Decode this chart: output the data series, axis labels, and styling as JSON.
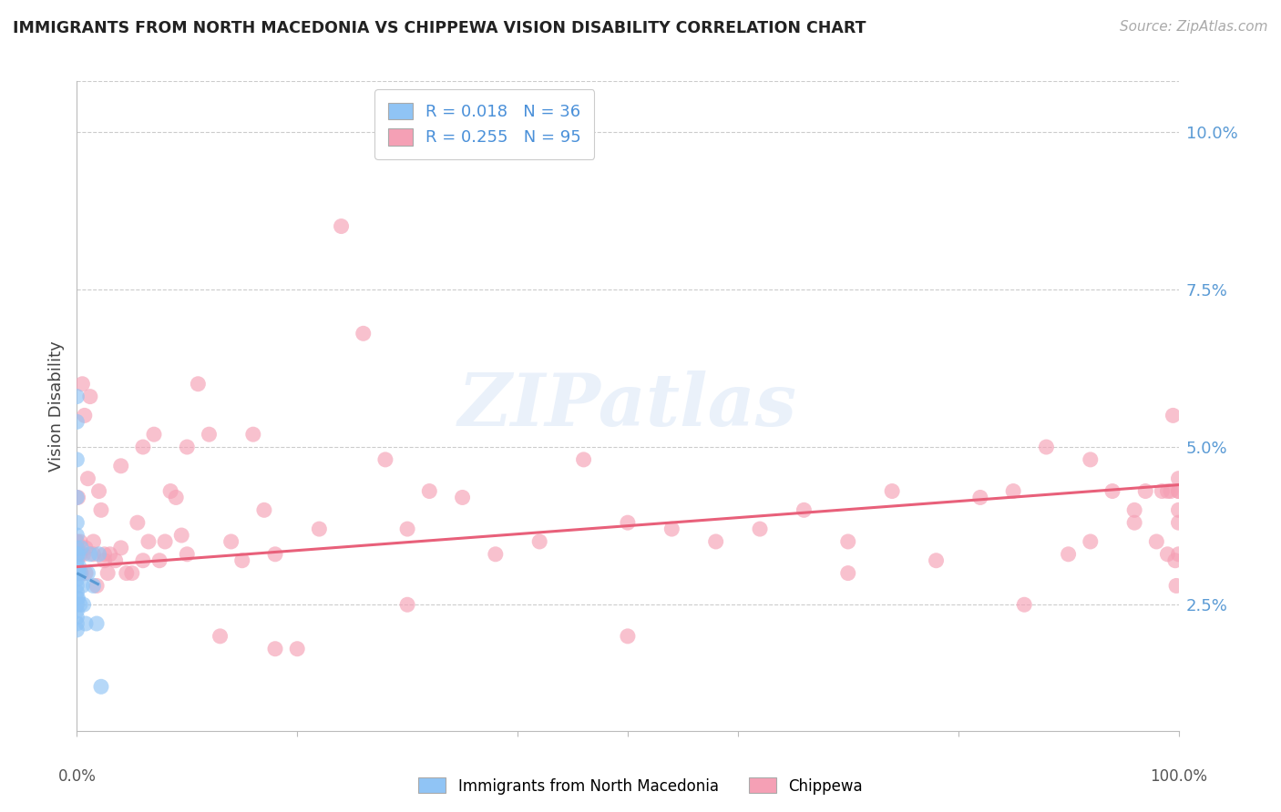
{
  "title": "IMMIGRANTS FROM NORTH MACEDONIA VS CHIPPEWA VISION DISABILITY CORRELATION CHART",
  "source": "Source: ZipAtlas.com",
  "ylabel": "Vision Disability",
  "xlim": [
    0,
    1.0
  ],
  "ylim": [
    0.005,
    0.108
  ],
  "yticks": [
    0.025,
    0.05,
    0.075,
    0.1
  ],
  "ytick_labels": [
    "2.5%",
    "5.0%",
    "7.5%",
    "10.0%"
  ],
  "blue_color": "#90c4f5",
  "pink_color": "#f5a0b5",
  "blue_line_color": "#5b9bd5",
  "pink_line_color": "#e8607a",
  "legend_blue_r": "0.018",
  "legend_blue_n": "36",
  "legend_pink_r": "0.255",
  "legend_pink_n": "95",
  "watermark_text": "ZIPatlas",
  "legend_label_color": "#4a90d9",
  "tick_label_color": "#5b9bd5",
  "blue_points_x": [
    0.0,
    0.0,
    0.0,
    0.0,
    0.0,
    0.0,
    0.0,
    0.0,
    0.0,
    0.0,
    0.0,
    0.0,
    0.0,
    0.0,
    0.0,
    0.0,
    0.0,
    0.0,
    0.0,
    0.0,
    0.001,
    0.001,
    0.001,
    0.002,
    0.003,
    0.003,
    0.004,
    0.005,
    0.006,
    0.008,
    0.01,
    0.012,
    0.015,
    0.018,
    0.02,
    0.022
  ],
  "blue_points_y": [
    0.058,
    0.054,
    0.048,
    0.042,
    0.038,
    0.036,
    0.034,
    0.033,
    0.032,
    0.031,
    0.03,
    0.029,
    0.028,
    0.027,
    0.026,
    0.025,
    0.024,
    0.023,
    0.022,
    0.021,
    0.033,
    0.03,
    0.026,
    0.031,
    0.03,
    0.025,
    0.034,
    0.028,
    0.025,
    0.022,
    0.03,
    0.033,
    0.028,
    0.022,
    0.033,
    0.012
  ],
  "blue_trend_x": [
    0.0,
    0.022
  ],
  "blue_trend_y": [
    0.03,
    0.028
  ],
  "pink_points_x": [
    0.0,
    0.001,
    0.002,
    0.003,
    0.004,
    0.005,
    0.006,
    0.007,
    0.008,
    0.01,
    0.012,
    0.015,
    0.018,
    0.02,
    0.022,
    0.025,
    0.028,
    0.03,
    0.035,
    0.04,
    0.045,
    0.05,
    0.055,
    0.06,
    0.065,
    0.07,
    0.075,
    0.08,
    0.085,
    0.09,
    0.095,
    0.1,
    0.11,
    0.12,
    0.13,
    0.14,
    0.15,
    0.16,
    0.17,
    0.18,
    0.2,
    0.22,
    0.24,
    0.26,
    0.28,
    0.3,
    0.32,
    0.35,
    0.38,
    0.42,
    0.46,
    0.5,
    0.54,
    0.58,
    0.62,
    0.66,
    0.7,
    0.74,
    0.78,
    0.82,
    0.86,
    0.88,
    0.9,
    0.92,
    0.94,
    0.96,
    0.97,
    0.98,
    0.985,
    0.99,
    0.993,
    0.995,
    0.997,
    0.998,
    1.0,
    1.0,
    1.0,
    1.0,
    1.0,
    1.0,
    0.003,
    0.008,
    0.015,
    0.025,
    0.04,
    0.06,
    0.1,
    0.18,
    0.3,
    0.5,
    0.7,
    0.85,
    0.92,
    0.96,
    0.99
  ],
  "pink_points_y": [
    0.035,
    0.042,
    0.03,
    0.035,
    0.03,
    0.06,
    0.033,
    0.055,
    0.034,
    0.045,
    0.058,
    0.035,
    0.028,
    0.043,
    0.04,
    0.033,
    0.03,
    0.033,
    0.032,
    0.047,
    0.03,
    0.03,
    0.038,
    0.05,
    0.035,
    0.052,
    0.032,
    0.035,
    0.043,
    0.042,
    0.036,
    0.05,
    0.06,
    0.052,
    0.02,
    0.035,
    0.032,
    0.052,
    0.04,
    0.033,
    0.018,
    0.037,
    0.085,
    0.068,
    0.048,
    0.037,
    0.043,
    0.042,
    0.033,
    0.035,
    0.048,
    0.038,
    0.037,
    0.035,
    0.037,
    0.04,
    0.035,
    0.043,
    0.032,
    0.042,
    0.025,
    0.05,
    0.033,
    0.048,
    0.043,
    0.04,
    0.043,
    0.035,
    0.043,
    0.033,
    0.043,
    0.055,
    0.032,
    0.028,
    0.033,
    0.043,
    0.04,
    0.038,
    0.045,
    0.043,
    0.033,
    0.03,
    0.033,
    0.032,
    0.034,
    0.032,
    0.033,
    0.018,
    0.025,
    0.02,
    0.03,
    0.043,
    0.035,
    0.038,
    0.043
  ],
  "pink_trend_x": [
    0.0,
    1.0
  ],
  "pink_trend_y": [
    0.031,
    0.044
  ]
}
